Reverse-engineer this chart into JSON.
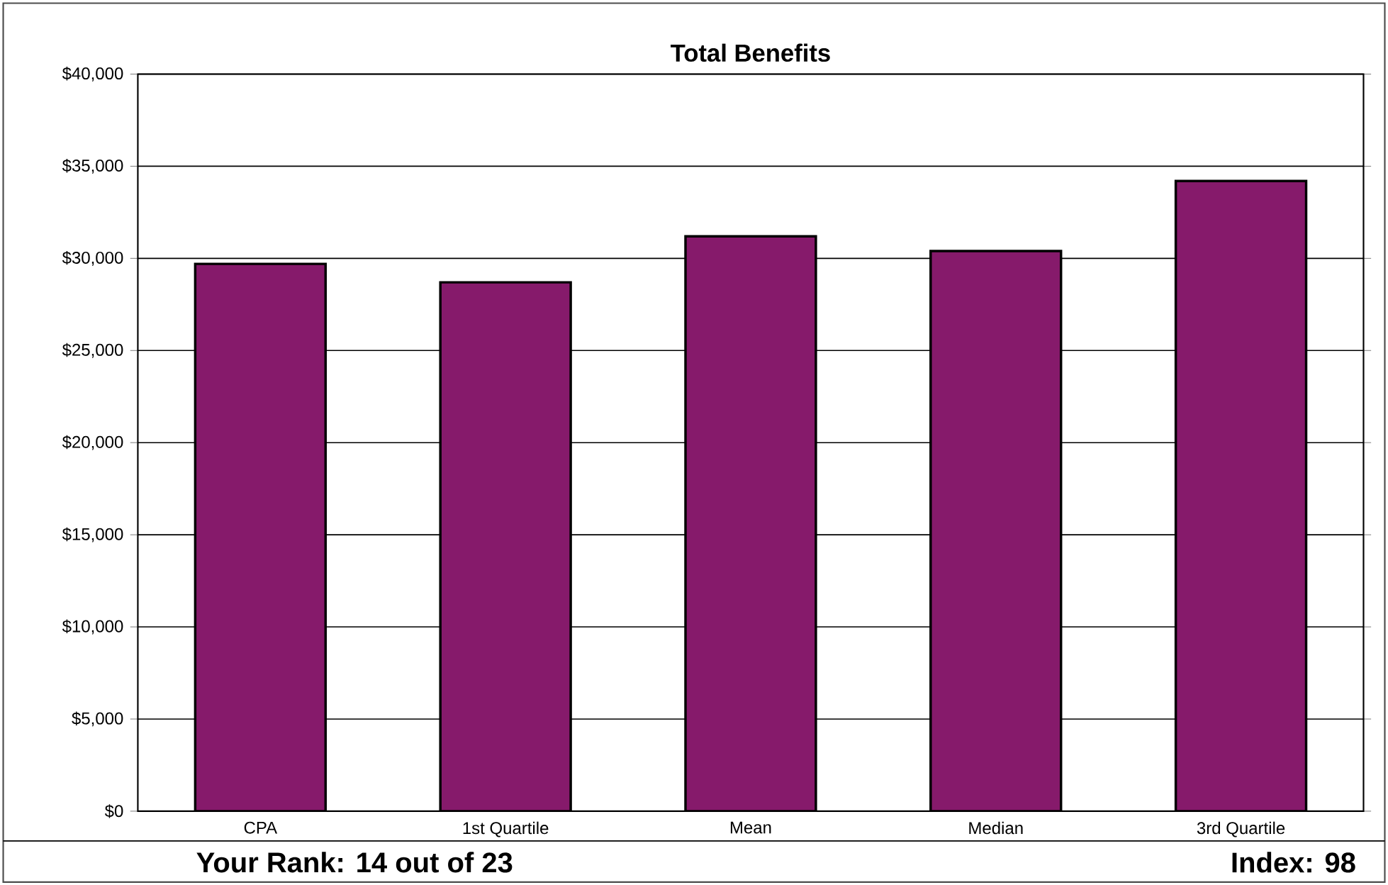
{
  "chart_data": {
    "type": "bar",
    "title": "Total Benefits",
    "categories": [
      "CPA",
      "1st Quartile",
      "Mean",
      "Median",
      "3rd Quartile"
    ],
    "values": [
      29700,
      28700,
      31200,
      30400,
      34200
    ],
    "color": "#861a6b",
    "ylim": [
      0,
      40000
    ],
    "yticks": [
      {
        "value": 0,
        "label": "$0"
      },
      {
        "value": 5000,
        "label": "$5,000"
      },
      {
        "value": 10000,
        "label": "$10,000"
      },
      {
        "value": 15000,
        "label": "$15,000"
      },
      {
        "value": 20000,
        "label": "$20,000"
      },
      {
        "value": 25000,
        "label": "$25,000"
      },
      {
        "value": 30000,
        "label": "$30,000"
      },
      {
        "value": 35000,
        "label": "$35,000"
      },
      {
        "value": 40000,
        "label": "$40,000"
      }
    ],
    "grid": "y",
    "annotations": [
      "Your Rank: 14 out of 23",
      "Index: 98"
    ]
  }
}
